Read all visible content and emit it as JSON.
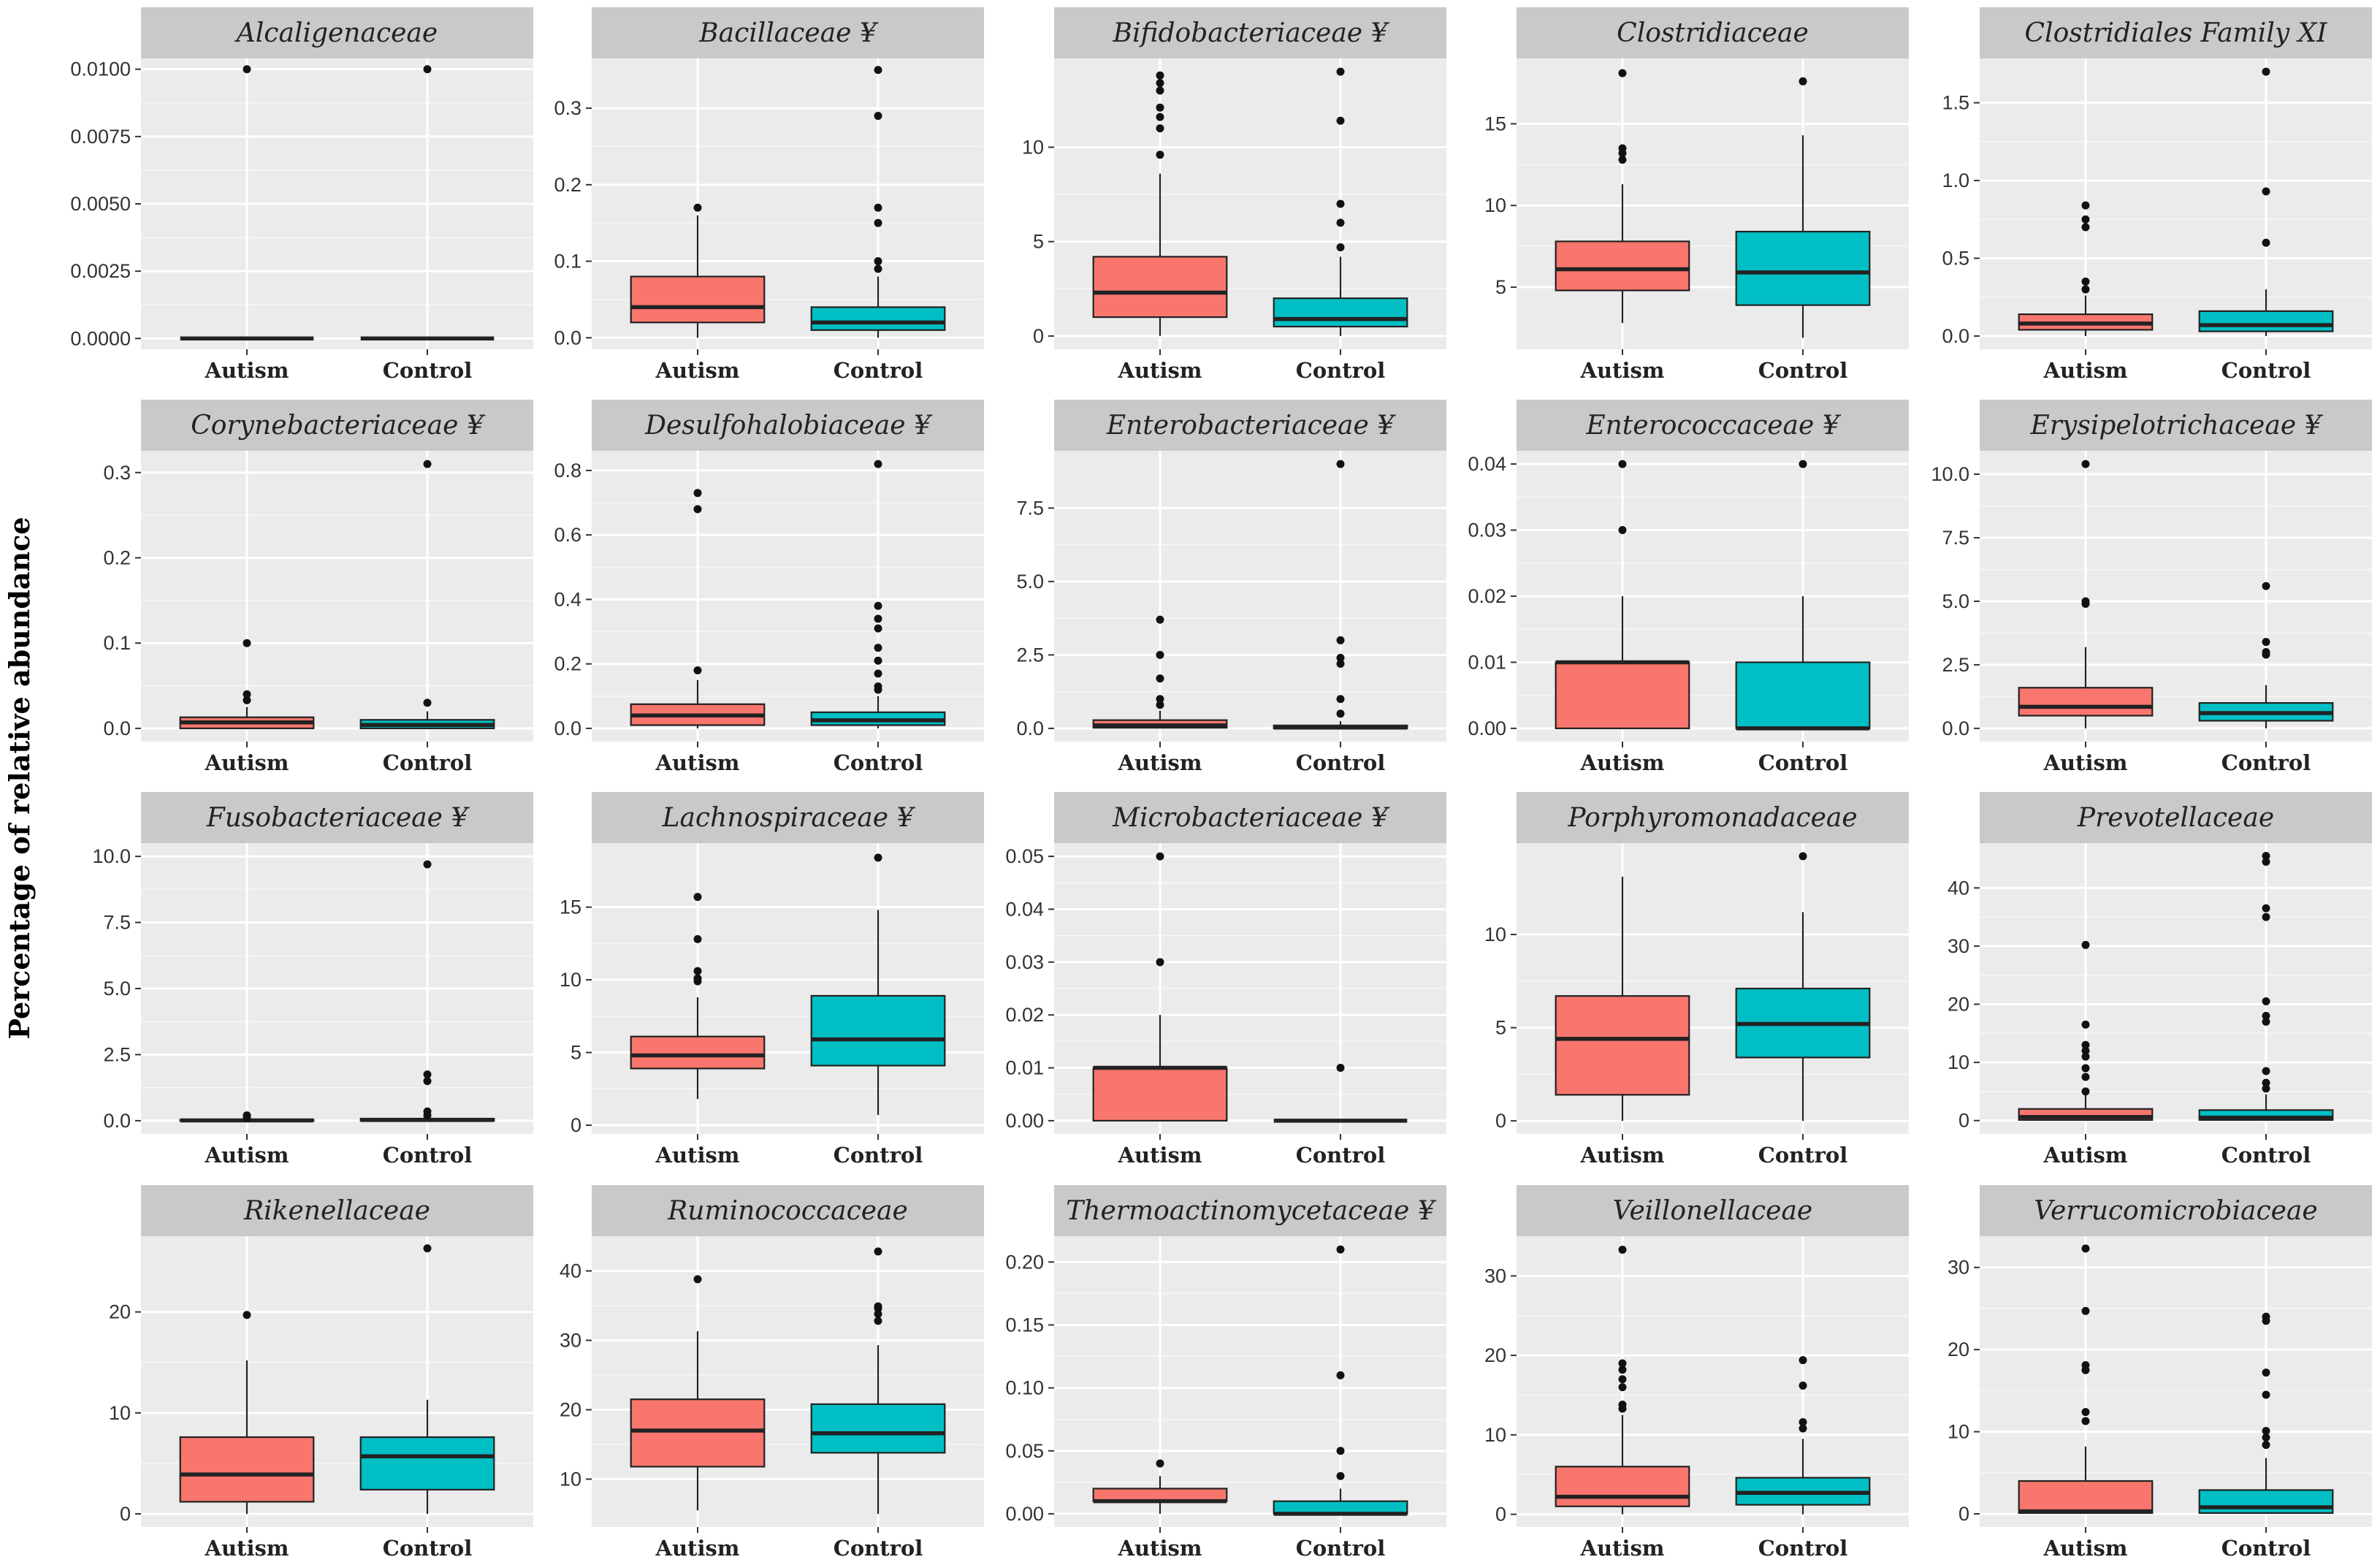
{
  "figure": {
    "ylabel": "Percentage of relative abundance",
    "colors": {
      "Autism": "#F8766D",
      "Control": "#00BFC4",
      "panel_bg": "#EBEBEB",
      "strip_bg": "#C9C9C9",
      "grid": "#FFFFFF"
    }
  },
  "chart_data": [
    {
      "type": "box",
      "title": "Alcaligenaceae",
      "marker": "",
      "categories": [
        "Autism",
        "Control"
      ],
      "ylim": [
        -0.0004,
        0.0104
      ],
      "yticks": [
        0.0,
        0.0025,
        0.005,
        0.0075,
        0.01
      ],
      "yticklabels": [
        "0.0000",
        "0.0025",
        "0.0050",
        "0.0075",
        "0.0100"
      ],
      "boxes": [
        {
          "q1": 0,
          "median": 0,
          "q3": 0,
          "whisker_low": 0,
          "whisker_high": 0,
          "outliers": [
            0.01
          ]
        },
        {
          "q1": 0,
          "median": 0,
          "q3": 0,
          "whisker_low": 0,
          "whisker_high": 0,
          "outliers": [
            0.01
          ]
        }
      ]
    },
    {
      "type": "box",
      "title": "Bacillaceae",
      "marker": "¥",
      "categories": [
        "Autism",
        "Control"
      ],
      "ylim": [
        -0.015,
        0.365
      ],
      "yticks": [
        0.0,
        0.1,
        0.2,
        0.3
      ],
      "yticklabels": [
        "0.0",
        "0.1",
        "0.2",
        "0.3"
      ],
      "boxes": [
        {
          "q1": 0.02,
          "median": 0.04,
          "q3": 0.08,
          "whisker_low": 0,
          "whisker_high": 0.16,
          "outliers": [
            0.17
          ]
        },
        {
          "q1": 0.01,
          "median": 0.02,
          "q3": 0.04,
          "whisker_low": 0,
          "whisker_high": 0.08,
          "outliers": [
            0.09,
            0.1,
            0.15,
            0.17,
            0.29,
            0.35
          ]
        }
      ]
    },
    {
      "type": "box",
      "title": "Bifidobacteriaceae",
      "marker": "¥",
      "categories": [
        "Autism",
        "Control"
      ],
      "ylim": [
        -0.7,
        14.7
      ],
      "yticks": [
        0,
        5,
        10
      ],
      "yticklabels": [
        "0",
        "5",
        "10"
      ],
      "boxes": [
        {
          "q1": 1.0,
          "median": 2.3,
          "q3": 4.2,
          "whisker_low": 0,
          "whisker_high": 8.6,
          "outliers": [
            9.6,
            11.0,
            11.6,
            12.1,
            13.0,
            13.4,
            13.8
          ]
        },
        {
          "q1": 0.5,
          "median": 0.9,
          "q3": 2.0,
          "whisker_low": 0,
          "whisker_high": 4.2,
          "outliers": [
            4.7,
            6.0,
            7.0,
            11.4,
            14.0
          ]
        }
      ]
    },
    {
      "type": "box",
      "title": "Clostridiaceae",
      "marker": "",
      "categories": [
        "Autism",
        "Control"
      ],
      "ylim": [
        1.2,
        19.0
      ],
      "yticks": [
        5,
        10,
        15
      ],
      "yticklabels": [
        "5",
        "10",
        "15"
      ],
      "boxes": [
        {
          "q1": 4.8,
          "median": 6.1,
          "q3": 7.8,
          "whisker_low": 2.8,
          "whisker_high": 11.3,
          "outliers": [
            12.8,
            13.2,
            13.5,
            18.1
          ]
        },
        {
          "q1": 3.9,
          "median": 5.9,
          "q3": 8.4,
          "whisker_low": 1.9,
          "whisker_high": 14.3,
          "outliers": [
            17.6
          ]
        }
      ]
    },
    {
      "type": "box",
      "title": "Clostridiales Family XI",
      "marker": "",
      "categories": [
        "Autism",
        "Control"
      ],
      "ylim": [
        -0.085,
        1.785
      ],
      "yticks": [
        0.0,
        0.5,
        1.0,
        1.5
      ],
      "yticklabels": [
        "0.0",
        "0.5",
        "1.0",
        "1.5"
      ],
      "boxes": [
        {
          "q1": 0.04,
          "median": 0.08,
          "q3": 0.14,
          "whisker_low": 0,
          "whisker_high": 0.26,
          "outliers": [
            0.3,
            0.35,
            0.7,
            0.75,
            0.84
          ]
        },
        {
          "q1": 0.03,
          "median": 0.07,
          "q3": 0.16,
          "whisker_low": 0,
          "whisker_high": 0.3,
          "outliers": [
            0.6,
            0.93,
            1.7
          ]
        }
      ]
    },
    {
      "type": "box",
      "title": "Corynebacteriaceae",
      "marker": "¥",
      "categories": [
        "Autism",
        "Control"
      ],
      "ylim": [
        -0.0155,
        0.3255
      ],
      "yticks": [
        0.0,
        0.1,
        0.2,
        0.3
      ],
      "yticklabels": [
        "0.0",
        "0.1",
        "0.2",
        "0.3"
      ],
      "boxes": [
        {
          "q1": 0.0,
          "median": 0.007,
          "q3": 0.013,
          "whisker_low": 0,
          "whisker_high": 0.025,
          "outliers": [
            0.033,
            0.04,
            0.1
          ]
        },
        {
          "q1": 0.0,
          "median": 0.004,
          "q3": 0.01,
          "whisker_low": 0,
          "whisker_high": 0.02,
          "outliers": [
            0.03,
            0.31
          ]
        }
      ]
    },
    {
      "type": "box",
      "title": "Desulfohalobiaceae",
      "marker": "¥",
      "categories": [
        "Autism",
        "Control"
      ],
      "ylim": [
        -0.041,
        0.861
      ],
      "yticks": [
        0.0,
        0.2,
        0.4,
        0.6,
        0.8
      ],
      "yticklabels": [
        "0.0",
        "0.2",
        "0.4",
        "0.6",
        "0.8"
      ],
      "boxes": [
        {
          "q1": 0.01,
          "median": 0.04,
          "q3": 0.075,
          "whisker_low": 0,
          "whisker_high": 0.15,
          "outliers": [
            0.18,
            0.68,
            0.73
          ]
        },
        {
          "q1": 0.01,
          "median": 0.025,
          "q3": 0.05,
          "whisker_low": 0,
          "whisker_high": 0.1,
          "outliers": [
            0.12,
            0.13,
            0.17,
            0.21,
            0.25,
            0.31,
            0.34,
            0.38,
            0.82
          ]
        }
      ]
    },
    {
      "type": "box",
      "title": "Enterobacteriaceae",
      "marker": "¥",
      "categories": [
        "Autism",
        "Control"
      ],
      "ylim": [
        -0.45,
        9.45
      ],
      "yticks": [
        0.0,
        2.5,
        5.0,
        7.5
      ],
      "yticklabels": [
        "0.0",
        "2.5",
        "5.0",
        "7.5"
      ],
      "boxes": [
        {
          "q1": 0.02,
          "median": 0.1,
          "q3": 0.28,
          "whisker_low": 0,
          "whisker_high": 0.6,
          "outliers": [
            0.8,
            1.0,
            1.7,
            2.5,
            3.7
          ]
        },
        {
          "q1": 0.0,
          "median": 0.03,
          "q3": 0.1,
          "whisker_low": 0,
          "whisker_high": 0.25,
          "outliers": [
            0.5,
            1.0,
            2.2,
            2.4,
            3.0,
            9.0
          ]
        }
      ]
    },
    {
      "type": "box",
      "title": "Enterococcaceae",
      "marker": "¥",
      "categories": [
        "Autism",
        "Control"
      ],
      "ylim": [
        -0.002,
        0.042
      ],
      "yticks": [
        0.0,
        0.01,
        0.02,
        0.03,
        0.04
      ],
      "yticklabels": [
        "0.00",
        "0.01",
        "0.02",
        "0.03",
        "0.04"
      ],
      "boxes": [
        {
          "q1": 0.0,
          "median": 0.01,
          "q3": 0.01,
          "whisker_low": 0,
          "whisker_high": 0.02,
          "outliers": [
            0.03,
            0.04
          ]
        },
        {
          "q1": 0.0,
          "median": 0.0,
          "q3": 0.01,
          "whisker_low": 0,
          "whisker_high": 0.02,
          "outliers": [
            0.04
          ]
        }
      ]
    },
    {
      "type": "box",
      "title": "Erysipelotrichaceae",
      "marker": "¥",
      "categories": [
        "Autism",
        "Control"
      ],
      "ylim": [
        -0.52,
        10.92
      ],
      "yticks": [
        0.0,
        2.5,
        5.0,
        7.5,
        10.0
      ],
      "yticklabels": [
        "0.0",
        "2.5",
        "5.0",
        "7.5",
        "10.0"
      ],
      "boxes": [
        {
          "q1": 0.5,
          "median": 0.85,
          "q3": 1.6,
          "whisker_low": 0,
          "whisker_high": 3.2,
          "outliers": [
            4.9,
            5.0,
            10.4
          ]
        },
        {
          "q1": 0.3,
          "median": 0.6,
          "q3": 1.0,
          "whisker_low": 0,
          "whisker_high": 1.7,
          "outliers": [
            2.9,
            3.0,
            3.4,
            5.6
          ]
        }
      ]
    },
    {
      "type": "box",
      "title": "Fusobacteriaceae",
      "marker": "¥",
      "categories": [
        "Autism",
        "Control"
      ],
      "ylim": [
        -0.5,
        10.5
      ],
      "yticks": [
        0.0,
        2.5,
        5.0,
        7.5,
        10.0
      ],
      "yticklabels": [
        "0.0",
        "2.5",
        "5.0",
        "7.5",
        "10.0"
      ],
      "boxes": [
        {
          "q1": 0.0,
          "median": 0.01,
          "q3": 0.03,
          "whisker_low": 0,
          "whisker_high": 0.06,
          "outliers": [
            0.1,
            0.2
          ]
        },
        {
          "q1": 0.0,
          "median": 0.03,
          "q3": 0.08,
          "whisker_low": 0,
          "whisker_high": 0.15,
          "outliers": [
            0.2,
            0.35,
            1.5,
            1.75,
            9.7
          ]
        }
      ]
    },
    {
      "type": "box",
      "title": "Lachnospiraceae",
      "marker": "¥",
      "categories": [
        "Autism",
        "Control"
      ],
      "ylim": [
        -0.6,
        19.4
      ],
      "yticks": [
        0,
        5,
        10,
        15
      ],
      "yticklabels": [
        "0",
        "5",
        "10",
        "15"
      ],
      "boxes": [
        {
          "q1": 3.9,
          "median": 4.8,
          "q3": 6.1,
          "whisker_low": 1.8,
          "whisker_high": 8.8,
          "outliers": [
            9.9,
            10.1,
            10.6,
            12.8,
            15.7
          ]
        },
        {
          "q1": 4.1,
          "median": 5.9,
          "q3": 8.9,
          "whisker_low": 0.7,
          "whisker_high": 14.8,
          "outliers": [
            18.4
          ]
        }
      ]
    },
    {
      "type": "box",
      "title": "Microbacteriaceae",
      "marker": "¥",
      "categories": [
        "Autism",
        "Control"
      ],
      "ylim": [
        -0.0025,
        0.0525
      ],
      "yticks": [
        0.0,
        0.01,
        0.02,
        0.03,
        0.04,
        0.05
      ],
      "yticklabels": [
        "0.00",
        "0.01",
        "0.02",
        "0.03",
        "0.04",
        "0.05"
      ],
      "boxes": [
        {
          "q1": 0.0,
          "median": 0.01,
          "q3": 0.01,
          "whisker_low": 0,
          "whisker_high": 0.02,
          "outliers": [
            0.03,
            0.05
          ]
        },
        {
          "q1": 0.0,
          "median": 0.0,
          "q3": 0.0,
          "whisker_low": 0,
          "whisker_high": 0,
          "outliers": [
            0.01
          ]
        }
      ]
    },
    {
      "type": "box",
      "title": "Porphyromonadaceae",
      "marker": "",
      "categories": [
        "Autism",
        "Control"
      ],
      "ylim": [
        -0.7,
        14.9
      ],
      "yticks": [
        0,
        5,
        10
      ],
      "yticklabels": [
        "0",
        "5",
        "10"
      ],
      "boxes": [
        {
          "q1": 1.4,
          "median": 4.4,
          "q3": 6.7,
          "whisker_low": 0,
          "whisker_high": 13.1,
          "outliers": []
        },
        {
          "q1": 3.4,
          "median": 5.2,
          "q3": 7.1,
          "whisker_low": 0,
          "whisker_high": 11.2,
          "outliers": [
            14.2
          ]
        }
      ]
    },
    {
      "type": "box",
      "title": "Prevotellaceae",
      "marker": "",
      "categories": [
        "Autism",
        "Control"
      ],
      "ylim": [
        -2.3,
        47.7
      ],
      "yticks": [
        0,
        10,
        20,
        30,
        40
      ],
      "yticklabels": [
        "0",
        "10",
        "20",
        "30",
        "40"
      ],
      "boxes": [
        {
          "q1": 0.1,
          "median": 0.6,
          "q3": 2.0,
          "whisker_low": 0,
          "whisker_high": 4.5,
          "outliers": [
            5.0,
            7.5,
            9.0,
            11.0,
            12.0,
            13.0,
            16.5,
            30.2
          ]
        },
        {
          "q1": 0.1,
          "median": 0.5,
          "q3": 1.8,
          "whisker_low": 0,
          "whisker_high": 4.5,
          "outliers": [
            5.5,
            6.5,
            8.5,
            17.0,
            18.0,
            20.5,
            35.0,
            36.5,
            44.5,
            45.5
          ]
        }
      ]
    },
    {
      "type": "box",
      "title": "Rikenellaceae",
      "marker": "",
      "categories": [
        "Autism",
        "Control"
      ],
      "ylim": [
        -1.3,
        27.5
      ],
      "yticks": [
        0,
        10,
        20
      ],
      "yticklabels": [
        "0",
        "10",
        "20"
      ],
      "boxes": [
        {
          "q1": 1.2,
          "median": 3.9,
          "q3": 7.6,
          "whisker_low": 0,
          "whisker_high": 15.2,
          "outliers": [
            19.7
          ]
        },
        {
          "q1": 2.4,
          "median": 5.7,
          "q3": 7.6,
          "whisker_low": 0,
          "whisker_high": 11.3,
          "outliers": [
            26.3
          ]
        }
      ]
    },
    {
      "type": "box",
      "title": "Ruminococcaceae",
      "marker": "",
      "categories": [
        "Autism",
        "Control"
      ],
      "ylim": [
        3.1,
        45.0
      ],
      "yticks": [
        10,
        20,
        30,
        40
      ],
      "yticklabels": [
        "10",
        "20",
        "30",
        "40"
      ],
      "boxes": [
        {
          "q1": 11.8,
          "median": 17.0,
          "q3": 21.5,
          "whisker_low": 5.5,
          "whisker_high": 31.3,
          "outliers": [
            38.8
          ]
        },
        {
          "q1": 13.8,
          "median": 16.6,
          "q3": 20.8,
          "whisker_low": 5.0,
          "whisker_high": 29.3,
          "outliers": [
            32.8,
            33.8,
            34.6,
            34.9,
            42.8
          ]
        }
      ]
    },
    {
      "type": "box",
      "title": "Thermoactinomycetaceae",
      "marker": "¥",
      "categories": [
        "Autism",
        "Control"
      ],
      "ylim": [
        -0.0105,
        0.2205
      ],
      "yticks": [
        0.0,
        0.05,
        0.1,
        0.15,
        0.2
      ],
      "yticklabels": [
        "0.00",
        "0.05",
        "0.10",
        "0.15",
        "0.20"
      ],
      "boxes": [
        {
          "q1": 0.01,
          "median": 0.01,
          "q3": 0.02,
          "whisker_low": 0,
          "whisker_high": 0.03,
          "outliers": [
            0.04
          ]
        },
        {
          "q1": 0.0,
          "median": 0.0,
          "q3": 0.01,
          "whisker_low": 0,
          "whisker_high": 0.02,
          "outliers": [
            0.03,
            0.05,
            0.11,
            0.21
          ]
        }
      ]
    },
    {
      "type": "box",
      "title": "Veillonellaceae",
      "marker": "",
      "categories": [
        "Autism",
        "Control"
      ],
      "ylim": [
        -1.6,
        35.0
      ],
      "yticks": [
        0,
        10,
        20,
        30
      ],
      "yticklabels": [
        "0",
        "10",
        "20",
        "30"
      ],
      "boxes": [
        {
          "q1": 1.0,
          "median": 2.2,
          "q3": 6.0,
          "whisker_low": 0,
          "whisker_high": 12.5,
          "outliers": [
            13.3,
            13.8,
            16.0,
            17.0,
            18.2,
            19.0,
            33.3
          ]
        },
        {
          "q1": 1.2,
          "median": 2.7,
          "q3": 4.6,
          "whisker_low": 0,
          "whisker_high": 9.5,
          "outliers": [
            10.8,
            11.6,
            16.2,
            19.4
          ]
        }
      ]
    },
    {
      "type": "box",
      "title": "Verrucomicrobiaceae",
      "marker": "",
      "categories": [
        "Autism",
        "Control"
      ],
      "ylim": [
        -1.6,
        33.8
      ],
      "yticks": [
        0,
        10,
        20,
        30
      ],
      "yticklabels": [
        "0",
        "10",
        "20",
        "30"
      ],
      "boxes": [
        {
          "q1": 0.1,
          "median": 0.3,
          "q3": 4.0,
          "whisker_low": 0,
          "whisker_high": 8.2,
          "outliers": [
            11.3,
            12.4,
            17.5,
            18.1,
            24.7,
            32.3
          ]
        },
        {
          "q1": 0.1,
          "median": 0.8,
          "q3": 2.9,
          "whisker_low": 0,
          "whisker_high": 6.8,
          "outliers": [
            8.4,
            9.3,
            10.1,
            14.5,
            17.2,
            23.5,
            24.0
          ]
        }
      ]
    }
  ]
}
